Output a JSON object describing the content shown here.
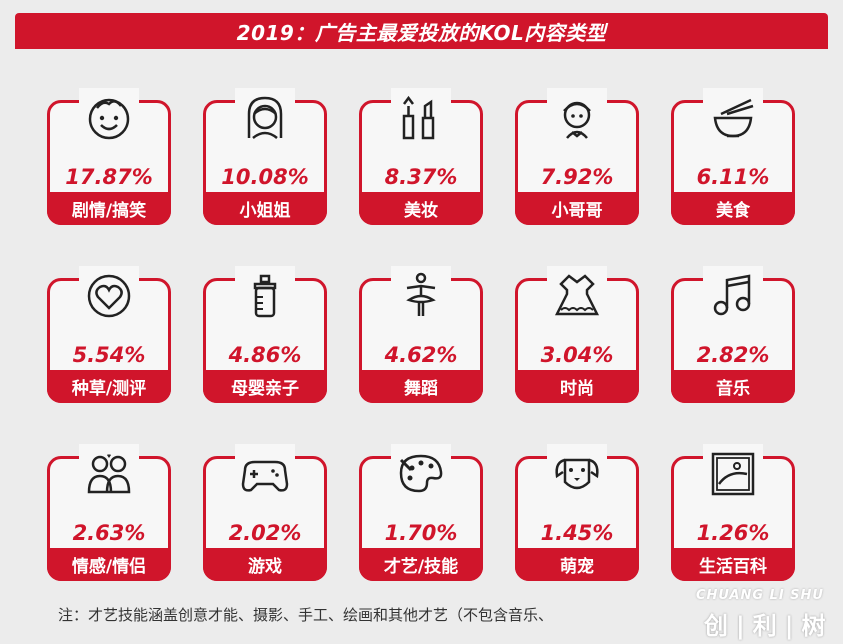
{
  "title": "2019：广告主最爱投放的KOL内容类型",
  "chart_data": {
    "type": "table",
    "title": "2019：广告主最爱投放的KOL内容类型",
    "categories": [
      "剧情/搞笑",
      "小姐姐",
      "美妆",
      "小哥哥",
      "美食",
      "种草/测评",
      "母婴亲子",
      "舞蹈",
      "时尚",
      "音乐",
      "情感/情侣",
      "游戏",
      "才艺/技能",
      "萌宠",
      "生活百科"
    ],
    "value_labels": [
      "17.87%",
      "10.08%",
      "8.37%",
      "7.92%",
      "6.11%",
      "5.54%",
      "4.86%",
      "4.62%",
      "3.04%",
      "2.82%",
      "2.63%",
      "2.02%",
      "1.70%",
      "1.45%",
      "1.26%"
    ],
    "values": [
      17.87,
      10.08,
      8.37,
      7.92,
      6.11,
      5.54,
      4.86,
      4.62,
      3.04,
      2.82,
      2.63,
      2.02,
      1.7,
      1.45,
      1.26
    ],
    "icons": [
      "smiley-face-icon",
      "girl-icon",
      "makeup-icon",
      "boy-icon",
      "noodle-bowl-icon",
      "heart-icon",
      "baby-bottle-icon",
      "ballerina-icon",
      "dress-icon",
      "music-note-icon",
      "couple-icon",
      "gamepad-icon",
      "palette-icon",
      "dog-icon",
      "picture-icon"
    ]
  },
  "note": "注：才艺技能涵盖创意才能、摄影、手工、绘画和其他才艺（不包含音乐、",
  "brand": {
    "en": "CHUANG LI SHU",
    "cn": "创|利|树"
  },
  "colors": {
    "accent": "#d0152b",
    "background": "#ececec"
  }
}
